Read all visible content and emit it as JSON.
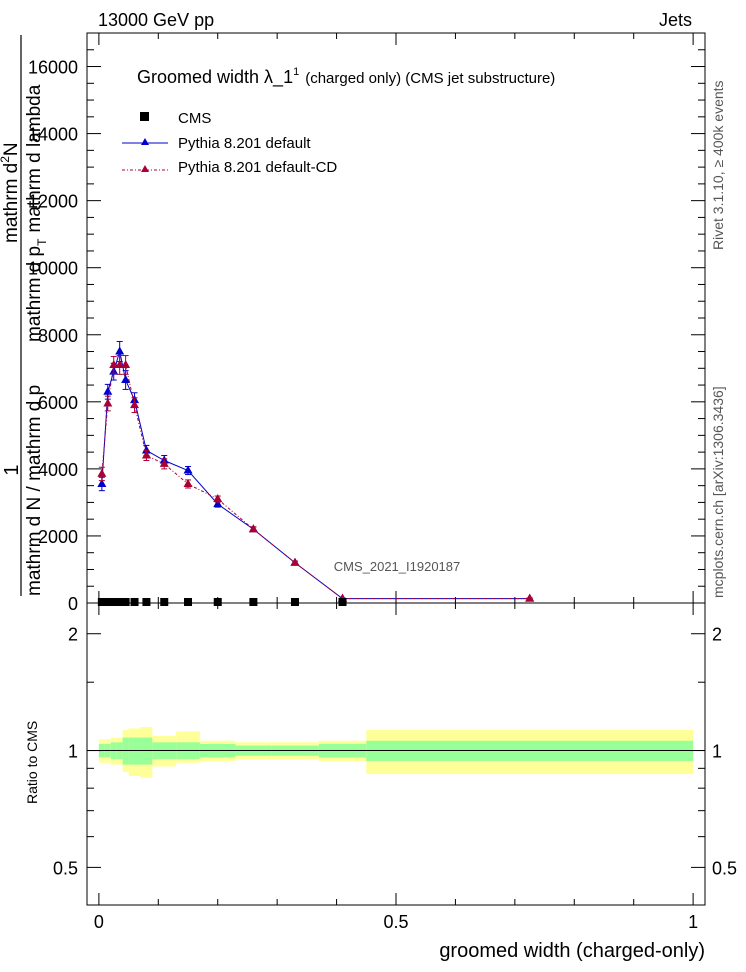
{
  "header": {
    "left": "13000 GeV pp",
    "right": "Jets"
  },
  "side_labels": {
    "rivet": "Rivet 3.1.10, ≥ 400k events",
    "mcplots": "mcplots.cern.ch [arXiv:1306.3436]"
  },
  "watermark": "CMS_2021_I1920187",
  "chart_data": {
    "type": "line",
    "title": "Groomed width  λ_1",
    "title_sup": "1",
    "title_suffix": "(charged only) (CMS jet substructure)",
    "xlabel": "groomed width (charged-only)",
    "ylabel_top": "1",
    "ylabel_line1": "mathrm d N / mathrm d p",
    "ylabel_line2": "mathrm d p",
    "ylabel_line3": "mathrm d lambda",
    "ylabel_tsub": "T",
    "ylabel_num": "mathrm d",
    "ylabel_num_sup": "2",
    "ylabel_num_end": "N",
    "ratio_ylabel": "Ratio to CMS",
    "xlim": [
      -0.02,
      1.02
    ],
    "ylim": [
      0,
      17000
    ],
    "ratio_ylim": [
      0.4,
      2.4
    ],
    "xticks": [
      "0",
      "0.5",
      "1"
    ],
    "yticks": [
      "0",
      "2000",
      "4000",
      "6000",
      "8000",
      "10000",
      "12000",
      "14000",
      "16000"
    ],
    "ratio_yticks": [
      "0.5",
      "1",
      "2"
    ],
    "legend": [
      "CMS",
      "Pythia 8.201 default",
      "Pythia 8.201 default-CD"
    ],
    "colors": {
      "cms": "#000000",
      "default": "#0000cc",
      "cd": "#aa0033",
      "band_inner": "#99ff99",
      "band_outer": "#ffff99"
    },
    "bins": [
      [
        0.0,
        0.01
      ],
      [
        0.01,
        0.02
      ],
      [
        0.02,
        0.03
      ],
      [
        0.03,
        0.04
      ],
      [
        0.04,
        0.05
      ],
      [
        0.05,
        0.07
      ],
      [
        0.07,
        0.09
      ],
      [
        0.09,
        0.13
      ],
      [
        0.13,
        0.17
      ],
      [
        0.17,
        0.23
      ],
      [
        0.23,
        0.29
      ],
      [
        0.29,
        0.37
      ],
      [
        0.37,
        0.45
      ],
      [
        0.45,
        1.0
      ]
    ],
    "cms_values": [
      0,
      0,
      0,
      0,
      0,
      0,
      0,
      0,
      0,
      0,
      0,
      0,
      0,
      0
    ],
    "series": [
      {
        "name": "Pythia 8.201 default",
        "x": [
          0.005,
          0.015,
          0.025,
          0.035,
          0.045,
          0.06,
          0.08,
          0.11,
          0.15,
          0.2,
          0.26,
          0.33,
          0.41,
          0.725
        ],
        "values": [
          3550,
          6300,
          6900,
          7500,
          6650,
          6050,
          4550,
          4250,
          3950,
          2950,
          2200,
          1200,
          130,
          130
        ],
        "errors": [
          200,
          220,
          250,
          300,
          280,
          220,
          150,
          150,
          120,
          90,
          70,
          50,
          20,
          20
        ]
      },
      {
        "name": "Pythia 8.201 default-CD",
        "x": [
          0.005,
          0.015,
          0.025,
          0.035,
          0.045,
          0.06,
          0.08,
          0.11,
          0.15,
          0.2,
          0.26,
          0.33,
          0.41,
          0.725
        ],
        "values": [
          3850,
          5950,
          7100,
          7100,
          7100,
          5900,
          4400,
          4150,
          3550,
          3100,
          2200,
          1200,
          130,
          130
        ],
        "errors": [
          200,
          220,
          250,
          280,
          280,
          220,
          150,
          150,
          120,
          90,
          70,
          50,
          20,
          20
        ]
      }
    ],
    "ratio_band_inner": [
      [
        0.96,
        1.04
      ],
      [
        0.96,
        1.04
      ],
      [
        0.95,
        1.05
      ],
      [
        0.95,
        1.05
      ],
      [
        0.92,
        1.08
      ],
      [
        0.92,
        1.08
      ],
      [
        0.92,
        1.08
      ],
      [
        0.95,
        1.05
      ],
      [
        0.95,
        1.05
      ],
      [
        0.96,
        1.04
      ],
      [
        0.97,
        1.03
      ],
      [
        0.97,
        1.03
      ],
      [
        0.96,
        1.04
      ],
      [
        0.94,
        1.06
      ]
    ],
    "ratio_band_outer": [
      [
        0.93,
        1.07
      ],
      [
        0.93,
        1.07
      ],
      [
        0.92,
        1.08
      ],
      [
        0.92,
        1.08
      ],
      [
        0.88,
        1.13
      ],
      [
        0.86,
        1.14
      ],
      [
        0.85,
        1.15
      ],
      [
        0.91,
        1.09
      ],
      [
        0.93,
        1.12
      ],
      [
        0.94,
        1.06
      ],
      [
        0.95,
        1.05
      ],
      [
        0.95,
        1.05
      ],
      [
        0.94,
        1.06
      ],
      [
        0.87,
        1.13
      ]
    ]
  }
}
